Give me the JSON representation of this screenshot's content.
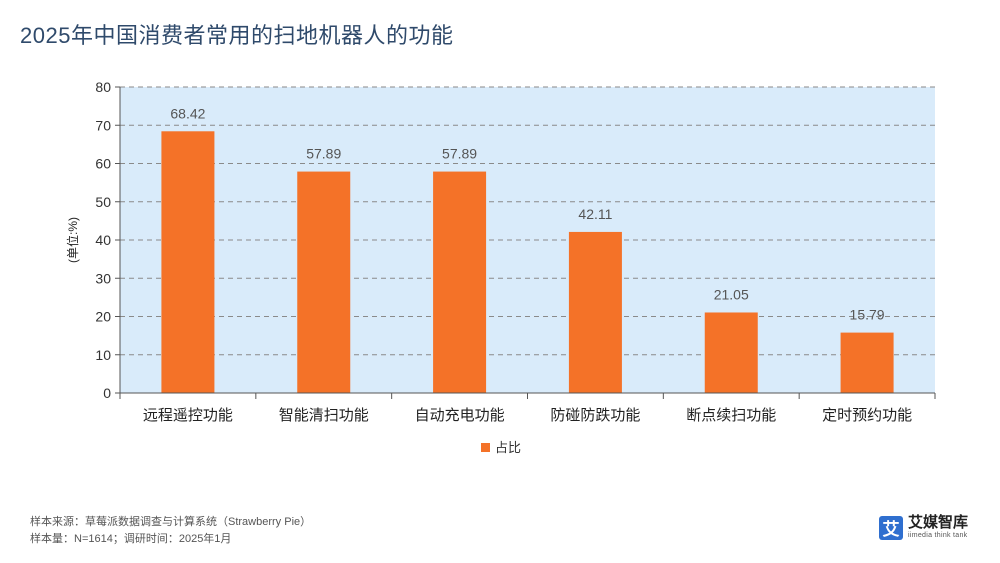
{
  "page": {
    "title": "2025年中国消费者常用的扫地机器人的功能",
    "footer_line1": "样本来源：草莓派数据调查与计算系统（Strawberry Pie）",
    "footer_line2": "样本量：N=1614；调研时间：2025年1月",
    "logo_mark": "艾",
    "logo_name": "艾媒智库",
    "logo_sub": "iimedia think tank"
  },
  "colors": {
    "bar": "#f47228",
    "plot_bg": "#d9ebfa",
    "grid": "#8a8a8a"
  },
  "chart_data": {
    "type": "bar",
    "categories": [
      "远程遥控功能",
      "智能清扫功能",
      "自动充电功能",
      "防碰防跌功能",
      "断点续扫功能",
      "定时预约功能"
    ],
    "series": [
      {
        "name": "占比",
        "values": [
          68.42,
          57.89,
          57.89,
          42.11,
          21.05,
          15.79
        ]
      }
    ],
    "ylabel": "(单位:%)",
    "ylim": [
      0,
      80
    ],
    "yticks": [
      0,
      10,
      20,
      30,
      40,
      50,
      60,
      70,
      80
    ],
    "grid": true,
    "legend": "bottom-center"
  }
}
